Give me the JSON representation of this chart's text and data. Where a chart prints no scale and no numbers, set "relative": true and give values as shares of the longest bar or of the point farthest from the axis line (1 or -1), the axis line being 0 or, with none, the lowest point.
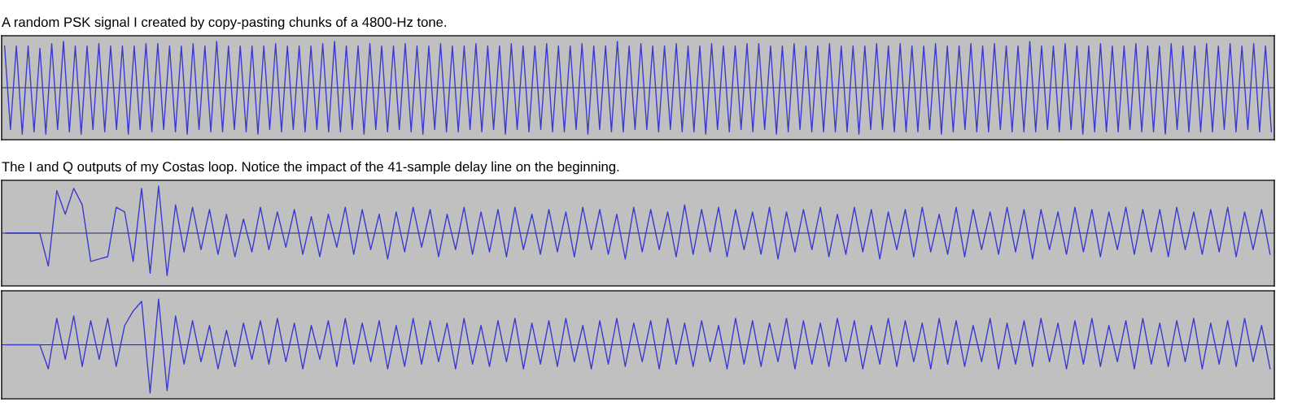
{
  "chart_data": [
    {
      "type": "line",
      "relative": true,
      "title": "A random PSK signal I created by copy-pasting chunks of a 4800-Hz tone.",
      "ref_lines": [
        {
          "axis": "y",
          "value": 0,
          "color": "#2a2a60"
        }
      ],
      "categories": [
        null,
        null,
        null,
        null,
        null,
        null,
        null,
        null,
        null,
        null,
        null,
        null,
        null,
        null,
        null,
        null,
        null,
        null,
        null,
        null,
        null,
        null,
        null,
        null,
        null,
        null,
        null,
        null,
        null,
        null,
        null,
        null,
        null,
        null,
        null,
        null,
        null,
        null,
        null,
        null,
        null,
        null,
        null,
        null,
        null,
        null,
        null,
        null,
        null,
        null,
        null,
        null,
        null,
        null,
        null,
        null,
        null,
        null,
        null,
        null,
        null,
        null,
        null,
        null,
        null,
        null,
        null,
        null,
        null,
        null,
        null,
        null,
        null,
        null,
        null,
        null,
        null,
        null,
        null,
        null,
        null,
        null,
        null,
        null,
        null,
        null,
        null,
        null,
        null,
        null,
        null,
        null,
        null,
        null,
        null,
        null,
        null,
        null,
        null,
        null,
        null,
        null,
        null,
        null,
        null,
        null,
        null,
        null,
        null,
        null,
        null,
        null,
        null,
        null,
        null,
        null,
        null,
        null,
        null,
        null,
        null,
        null,
        null,
        null,
        null,
        null,
        null,
        null,
        null,
        null,
        null,
        null,
        null,
        null,
        null,
        null,
        null,
        null,
        null,
        null,
        null,
        null,
        null,
        null,
        null,
        null,
        null,
        null,
        null,
        null,
        null,
        null,
        null,
        null,
        null,
        null,
        null,
        null,
        null,
        null,
        null,
        null,
        null,
        null,
        null,
        null,
        null,
        null,
        null,
        null,
        null,
        null,
        null,
        null,
        null,
        null,
        null,
        null,
        null,
        null,
        null,
        null,
        null,
        null,
        null,
        null,
        null,
        null,
        null,
        null,
        null,
        null,
        null,
        null,
        null,
        null,
        null,
        null,
        null,
        null,
        null,
        null,
        null,
        null,
        null,
        null,
        null,
        null,
        null,
        null,
        null,
        null,
        null,
        null,
        null,
        null
      ],
      "series": [
        {
          "color": "#3a3ad0",
          "values": [
            0.9,
            -0.9,
            0.9,
            -1,
            0.9,
            -0.95,
            0.85,
            -1,
            0.95,
            -0.9,
            1,
            -0.95,
            0.9,
            -1,
            0.9,
            -0.9,
            0.95,
            -0.95,
            0.9,
            -0.9,
            0.9,
            -1,
            0.9,
            -0.9,
            0.95,
            -0.95,
            0.95,
            -0.9,
            0.9,
            -0.95,
            0.9,
            -1,
            0.95,
            -0.9,
            0.9,
            -0.95,
            1,
            -0.95,
            0.9,
            -0.9,
            0.9,
            -0.95,
            0.9,
            -1,
            0.9,
            -0.9,
            0.95,
            -0.95,
            0.9,
            -0.9,
            0.9,
            -0.95,
            0.9,
            -0.9,
            0.95,
            -0.95,
            1,
            -0.95,
            0.9,
            -0.9,
            0.9,
            -1,
            0.95,
            -0.9,
            0.9,
            -0.95,
            0.9,
            -0.9,
            0.95,
            -0.95,
            0.9,
            -1,
            0.9,
            -0.9,
            0.95,
            -0.95,
            0.9,
            -0.95,
            0.9,
            -0.9,
            0.95,
            -0.95,
            0.9,
            -0.9,
            0.9,
            -1,
            0.95,
            -0.9,
            0.9,
            -0.95,
            0.9,
            -0.9,
            0.95,
            -0.95,
            0.9,
            -0.95,
            0.9,
            -0.9,
            0.95,
            -1,
            0.9,
            -0.9,
            0.9,
            -0.95,
            1,
            -0.95,
            0.9,
            -0.9,
            0.95,
            -0.9,
            0.9,
            -0.95,
            0.9,
            -0.9,
            0.95,
            -0.95,
            0.9,
            -0.95,
            0.9,
            -1,
            0.95,
            -0.9,
            0.9,
            -0.95,
            0.9,
            -0.9,
            0.95,
            -0.95,
            0.95,
            -0.9,
            0.9,
            -1,
            0.9,
            -0.95,
            0.95,
            -0.9,
            0.9,
            -0.95,
            0.9,
            -0.95,
            0.95,
            -0.95,
            0.9,
            -0.95,
            0.9,
            -1,
            0.9,
            -0.9,
            0.95,
            -0.9,
            0.9,
            -0.95,
            0.95,
            -0.95,
            0.9,
            -0.95,
            0.9,
            -0.9,
            0.95,
            -1,
            0.9,
            -0.95,
            0.9,
            -0.9,
            0.95,
            -0.95,
            0.9,
            -0.95,
            0.95,
            -0.9,
            0.9,
            -0.95,
            0.9,
            -0.95,
            1,
            -0.95,
            0.9,
            -0.9,
            0.9,
            -0.95,
            0.95,
            -0.9,
            0.9,
            -1,
            0.9,
            -0.95,
            0.95,
            -0.95,
            0.9,
            -0.95,
            0.9,
            -0.9,
            0.95,
            -0.95,
            0.9,
            -0.95,
            0.9,
            -1,
            0.95,
            -0.9,
            0.9,
            -0.95,
            0.9,
            -0.95,
            0.95,
            -0.95,
            0.9,
            -0.9,
            0.95,
            -0.95,
            0.9,
            -0.9,
            0.95,
            -0.95,
            0.9,
            -0.95
          ]
        }
      ]
    },
    {
      "type": "line",
      "relative": true,
      "title": "The I and Q outputs of my Costas loop. Notice the impact of the 41-sample delay line on the beginning.",
      "ref_lines": [
        {
          "axis": "y",
          "value": 0,
          "color": "#2a2a60"
        }
      ],
      "categories": [
        null,
        null,
        null,
        null,
        null,
        null,
        null,
        null,
        null,
        null,
        null,
        null,
        null,
        null,
        null,
        null,
        null,
        null,
        null,
        null,
        null,
        null,
        null,
        null,
        null,
        null,
        null,
        null,
        null,
        null,
        null,
        null,
        null,
        null,
        null,
        null,
        null,
        null,
        null,
        null,
        null,
        null,
        null,
        null,
        null,
        null,
        null,
        null,
        null,
        null,
        null,
        null,
        null,
        null,
        null,
        null,
        null,
        null,
        null,
        null,
        null,
        null,
        null,
        null,
        null,
        null,
        null,
        null,
        null,
        null,
        null,
        null,
        null,
        null,
        null,
        null,
        null,
        null,
        null,
        null,
        null,
        null,
        null,
        null,
        null,
        null,
        null,
        null,
        null,
        null,
        null,
        null,
        null,
        null,
        null,
        null,
        null,
        null,
        null,
        null,
        null,
        null,
        null,
        null,
        null,
        null,
        null,
        null,
        null,
        null,
        null,
        null,
        null,
        null,
        null,
        null,
        null,
        null,
        null,
        null,
        null,
        null,
        null,
        null,
        null,
        null,
        null,
        null,
        null,
        null,
        null,
        null,
        null,
        null,
        null,
        null,
        null,
        null,
        null,
        null,
        null,
        null,
        null,
        null,
        null,
        null,
        null,
        null,
        null,
        null
      ],
      "series": [
        {
          "color": "#3a3ad0",
          "values": [
            0,
            0,
            0,
            0,
            0,
            -0.7,
            0.9,
            0.4,
            0.95,
            0.6,
            -0.6,
            -0.55,
            -0.5,
            0.55,
            0.45,
            -0.6,
            0.95,
            -0.85,
            1,
            -0.9,
            0.6,
            -0.4,
            0.55,
            -0.35,
            0.5,
            -0.45,
            0.4,
            -0.5,
            0.3,
            -0.4,
            0.55,
            -0.35,
            0.45,
            -0.3,
            0.5,
            -0.45,
            0.35,
            -0.5,
            0.4,
            -0.3,
            0.55,
            -0.45,
            0.5,
            -0.35,
            0.4,
            -0.55,
            0.45,
            -0.4,
            0.55,
            -0.3,
            0.5,
            -0.5,
            0.4,
            -0.35,
            0.55,
            -0.45,
            0.45,
            -0.4,
            0.5,
            -0.5,
            0.55,
            -0.35,
            0.4,
            -0.45,
            0.5,
            -0.4,
            0.45,
            -0.5,
            0.55,
            -0.35,
            0.5,
            -0.45,
            0.4,
            -0.55,
            0.55,
            -0.4,
            0.5,
            -0.35,
            0.45,
            -0.5,
            0.6,
            -0.45,
            0.5,
            -0.4,
            0.55,
            -0.5,
            0.5,
            -0.35,
            0.45,
            -0.45,
            0.55,
            -0.55,
            0.45,
            -0.4,
            0.5,
            -0.35,
            0.55,
            -0.5,
            0.4,
            -0.45,
            0.55,
            -0.4,
            0.5,
            -0.55,
            0.45,
            -0.35,
            0.5,
            -0.5,
            0.55,
            -0.4,
            0.4,
            -0.45,
            0.55,
            -0.5,
            0.5,
            -0.35,
            0.45,
            -0.45,
            0.55,
            -0.4,
            0.5,
            -0.55,
            0.5,
            -0.35,
            0.45,
            -0.45,
            0.55,
            -0.4,
            0.5,
            -0.5,
            0.45,
            -0.35,
            0.55,
            -0.45,
            0.5,
            -0.4,
            0.5,
            -0.5,
            0.55,
            -0.35,
            0.45,
            -0.45,
            0.5,
            -0.4,
            0.55,
            -0.5,
            0.45,
            -0.35,
            0.5,
            -0.45
          ]
        }
      ]
    },
    {
      "type": "line",
      "relative": true,
      "ref_lines": [
        {
          "axis": "y",
          "value": 0,
          "color": "#2a2a60"
        }
      ],
      "categories": [
        null,
        null,
        null,
        null,
        null,
        null,
        null,
        null,
        null,
        null,
        null,
        null,
        null,
        null,
        null,
        null,
        null,
        null,
        null,
        null,
        null,
        null,
        null,
        null,
        null,
        null,
        null,
        null,
        null,
        null,
        null,
        null,
        null,
        null,
        null,
        null,
        null,
        null,
        null,
        null,
        null,
        null,
        null,
        null,
        null,
        null,
        null,
        null,
        null,
        null,
        null,
        null,
        null,
        null,
        null,
        null,
        null,
        null,
        null,
        null,
        null,
        null,
        null,
        null,
        null,
        null,
        null,
        null,
        null,
        null,
        null,
        null,
        null,
        null,
        null,
        null,
        null,
        null,
        null,
        null,
        null,
        null,
        null,
        null,
        null,
        null,
        null,
        null,
        null,
        null,
        null,
        null,
        null,
        null,
        null,
        null,
        null,
        null,
        null,
        null,
        null,
        null,
        null,
        null,
        null,
        null,
        null,
        null,
        null,
        null,
        null,
        null,
        null,
        null,
        null,
        null,
        null,
        null,
        null,
        null,
        null,
        null,
        null,
        null,
        null,
        null,
        null,
        null,
        null,
        null,
        null,
        null,
        null,
        null,
        null,
        null,
        null,
        null,
        null,
        null,
        null,
        null,
        null,
        null,
        null,
        null,
        null,
        null,
        null,
        null
      ],
      "series": [
        {
          "color": "#3a3ad0",
          "values": [
            0,
            0,
            0,
            0,
            0,
            -0.5,
            0.55,
            -0.3,
            0.6,
            -0.45,
            0.5,
            -0.3,
            0.55,
            -0.45,
            0.4,
            0.7,
            0.9,
            -1,
            0.95,
            -0.95,
            0.6,
            -0.4,
            0.5,
            -0.35,
            0.4,
            -0.5,
            0.3,
            -0.45,
            0.45,
            -0.3,
            0.5,
            -0.4,
            0.55,
            -0.35,
            0.45,
            -0.5,
            0.4,
            -0.3,
            0.5,
            -0.45,
            0.55,
            -0.4,
            0.45,
            -0.35,
            0.5,
            -0.5,
            0.4,
            -0.45,
            0.55,
            -0.4,
            0.5,
            -0.35,
            0.45,
            -0.5,
            0.55,
            -0.4,
            0.4,
            -0.45,
            0.5,
            -0.35,
            0.55,
            -0.5,
            0.45,
            -0.4,
            0.5,
            -0.45,
            0.55,
            -0.35,
            0.4,
            -0.5,
            0.5,
            -0.4,
            0.55,
            -0.45,
            0.45,
            -0.35,
            0.5,
            -0.5,
            0.55,
            -0.4,
            0.45,
            -0.45,
            0.5,
            -0.35,
            0.4,
            -0.5,
            0.55,
            -0.4,
            0.5,
            -0.45,
            0.45,
            -0.35,
            0.55,
            -0.5,
            0.5,
            -0.4,
            0.45,
            -0.45,
            0.55,
            -0.35,
            0.5,
            -0.5,
            0.4,
            -0.4,
            0.55,
            -0.45,
            0.5,
            -0.35,
            0.45,
            -0.5,
            0.55,
            -0.4,
            0.5,
            -0.45,
            0.4,
            -0.35,
            0.55,
            -0.5,
            0.45,
            -0.4,
            0.5,
            -0.45,
            0.55,
            -0.35,
            0.45,
            -0.5,
            0.5,
            -0.4,
            0.55,
            -0.45,
            0.4,
            -0.35,
            0.5,
            -0.5,
            0.55,
            -0.4,
            0.45,
            -0.45,
            0.5,
            -0.35,
            0.55,
            -0.5,
            0.45,
            -0.4,
            0.5,
            -0.45,
            0.55,
            -0.35,
            0.4,
            -0.5
          ]
        }
      ]
    }
  ]
}
